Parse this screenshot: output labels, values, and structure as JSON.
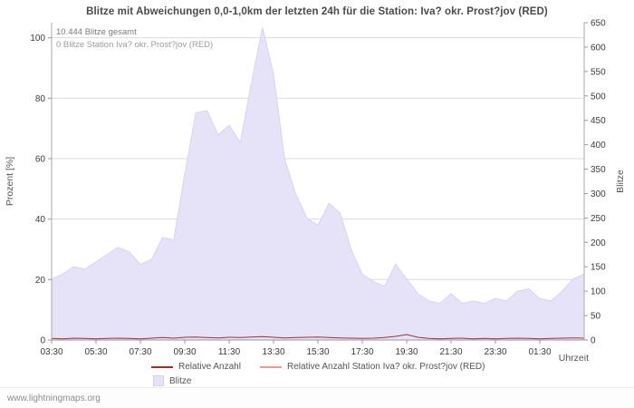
{
  "page": {
    "watermark": "www.lightningmaps.org"
  },
  "chart_data": {
    "type": "area",
    "title": "Blitze mit Abweichungen 0,0-1,0km der letzten 24h für die Station: Iva? okr. Prost?jov (RED)",
    "annotations": [
      "10.444 Blitze gesamt",
      "0 Blitze Station Iva? okr. Prost?jov (RED)"
    ],
    "xlabel": "Uhrzeit",
    "x_tick_labels": [
      "03:30",
      "05:30",
      "07:30",
      "09:30",
      "11:30",
      "13:30",
      "15:30",
      "17:30",
      "19:30",
      "21:30",
      "23:30",
      "01:30"
    ],
    "x_points_per_label": 4,
    "left_axis": {
      "label": "Prozent [%]",
      "min": 0,
      "max": 105,
      "ticks": [
        0,
        20,
        40,
        60,
        80,
        100
      ]
    },
    "right_axis": {
      "label": "Blitze",
      "min": 0,
      "max": 650,
      "tick_step": 50
    },
    "grid": "horizontal",
    "legend_position": "bottom",
    "series": [
      {
        "name": "Blitze",
        "type": "area",
        "axis": "right",
        "color": "#e6e3f9",
        "edge_color": "#d7d3f2",
        "values": [
          125,
          135,
          150,
          145,
          160,
          175,
          190,
          180,
          155,
          165,
          210,
          205,
          340,
          465,
          470,
          420,
          440,
          405,
          525,
          640,
          545,
          370,
          300,
          250,
          235,
          280,
          260,
          185,
          135,
          120,
          110,
          155,
          125,
          95,
          80,
          75,
          95,
          75,
          80,
          75,
          85,
          80,
          100,
          105,
          85,
          80,
          100,
          125,
          135
        ]
      },
      {
        "name": "Relative Anzahl",
        "type": "line",
        "axis": "left",
        "color": "#993333",
        "values": [
          0.5,
          0.4,
          0.6,
          0.5,
          0.4,
          0.5,
          0.6,
          0.5,
          0.4,
          0.6,
          0.8,
          0.6,
          0.9,
          1.0,
          0.8,
          0.7,
          0.9,
          0.8,
          1.0,
          1.1,
          0.9,
          0.7,
          0.8,
          0.9,
          1.0,
          0.8,
          0.7,
          0.6,
          0.5,
          0.6,
          0.8,
          1.2,
          1.8,
          0.9,
          0.5,
          0.4,
          0.5,
          0.6,
          0.4,
          0.5,
          0.4,
          0.5,
          0.6,
          0.5,
          0.4,
          0.5,
          0.6,
          0.7,
          0.6
        ]
      },
      {
        "name": "Relative Anzahl Station Iva? okr. Prost?jov (RED)",
        "type": "line",
        "axis": "left",
        "color": "#ec9c94",
        "values": [
          0,
          0,
          0,
          0,
          0,
          0,
          0,
          0,
          0,
          0,
          0,
          0,
          0,
          0,
          0,
          0,
          0,
          0,
          0,
          0,
          0,
          0,
          0,
          0,
          0,
          0,
          0,
          0,
          0,
          0,
          0,
          0,
          0,
          0,
          0,
          0,
          0,
          0,
          0,
          0,
          0,
          0,
          0,
          0,
          0,
          0,
          0,
          0,
          0
        ]
      }
    ]
  }
}
